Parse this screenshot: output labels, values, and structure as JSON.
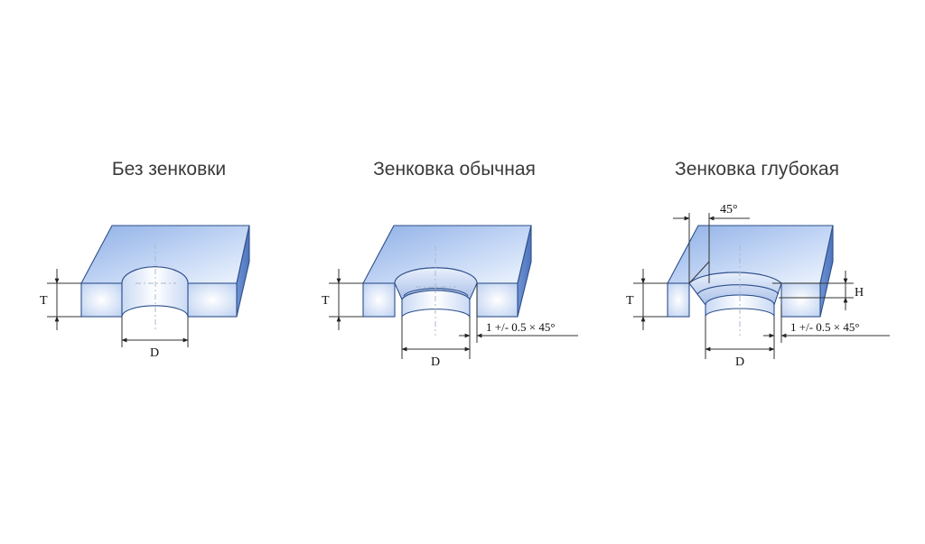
{
  "panels": [
    {
      "title": "Без зенковки",
      "thickness_label": "T",
      "diameter_label": "D"
    },
    {
      "title": "Зенковка обычная",
      "thickness_label": "T",
      "diameter_label": "D",
      "chamfer_label": "1 +/- 0.5 × 45°"
    },
    {
      "title": "Зенковка глубокая",
      "thickness_label": "T",
      "diameter_label": "D",
      "chamfer_label": "1 +/- 0.5 × 45°",
      "depth_label": "H",
      "angle_label": "45°"
    }
  ],
  "colors": {
    "top_face_dark": "#7c9dd6",
    "top_face_light": "#e6eefb",
    "side_face": "#5f83c8",
    "front_face": "#dfe9fa",
    "bore": "#f3f7fe"
  }
}
